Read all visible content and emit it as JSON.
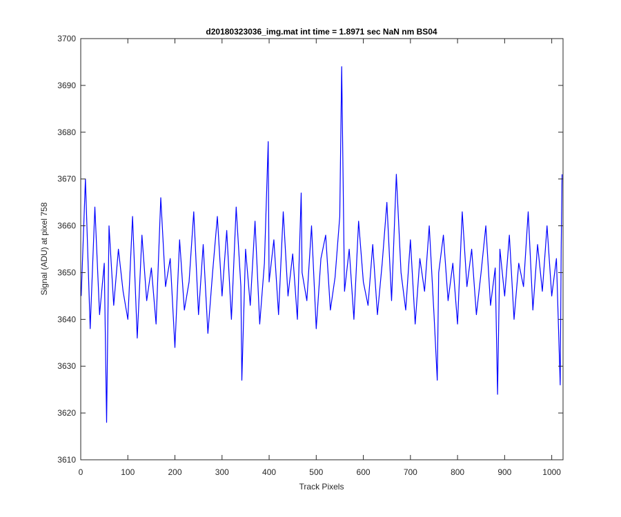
{
  "chart_data": {
    "type": "line",
    "title": "d20180323036_img.mat int time = 1.8971 sec  NaN nm BS04",
    "xlabel": "Track Pixels",
    "ylabel": "Signal (ADU) at pixel 758",
    "xlim": [
      0,
      1024
    ],
    "ylim": [
      3610,
      3700
    ],
    "xticks": [
      0,
      100,
      200,
      300,
      400,
      500,
      600,
      700,
      800,
      900,
      1000
    ],
    "yticks": [
      3610,
      3620,
      3630,
      3640,
      3650,
      3660,
      3670,
      3680,
      3690,
      3700
    ],
    "grid": false,
    "series": [
      {
        "color": "#0000ff",
        "x": [
          1,
          10,
          20,
          30,
          40,
          50,
          55,
          60,
          70,
          80,
          90,
          100,
          110,
          120,
          130,
          140,
          150,
          160,
          170,
          180,
          190,
          200,
          210,
          220,
          230,
          240,
          250,
          260,
          270,
          280,
          290,
          300,
          310,
          320,
          330,
          340,
          342,
          350,
          360,
          370,
          380,
          390,
          398,
          400,
          410,
          420,
          430,
          440,
          450,
          460,
          468,
          470,
          480,
          490,
          500,
          510,
          520,
          530,
          540,
          550,
          554,
          560,
          570,
          580,
          590,
          600,
          610,
          620,
          630,
          640,
          650,
          660,
          670,
          680,
          690,
          700,
          710,
          720,
          730,
          740,
          750,
          757,
          760,
          770,
          780,
          790,
          800,
          810,
          820,
          830,
          840,
          850,
          860,
          870,
          880,
          885,
          890,
          900,
          910,
          920,
          930,
          940,
          950,
          960,
          970,
          980,
          990,
          1000,
          1010,
          1018,
          1020,
          1022
        ],
        "y": [
          3645,
          3670,
          3638,
          3664,
          3641,
          3652,
          3618,
          3660,
          3643,
          3655,
          3646,
          3640,
          3662,
          3636,
          3658,
          3644,
          3651,
          3639,
          3666,
          3647,
          3653,
          3634,
          3657,
          3642,
          3648,
          3663,
          3641,
          3656,
          3637,
          3650,
          3662,
          3645,
          3659,
          3640,
          3664,
          3647,
          3627,
          3655,
          3643,
          3661,
          3639,
          3652,
          3678,
          3648,
          3657,
          3641,
          3663,
          3645,
          3654,
          3640,
          3667,
          3650,
          3644,
          3660,
          3638,
          3653,
          3658,
          3642,
          3649,
          3662,
          3694,
          3646,
          3655,
          3640,
          3661,
          3648,
          3643,
          3656,
          3641,
          3652,
          3665,
          3644,
          3671,
          3650,
          3642,
          3657,
          3639,
          3653,
          3646,
          3660,
          3641,
          3627,
          3650,
          3658,
          3644,
          3652,
          3639,
          3663,
          3647,
          3655,
          3641,
          3650,
          3660,
          3643,
          3651,
          3624,
          3655,
          3645,
          3658,
          3640,
          3652,
          3647,
          3663,
          3642,
          3656,
          3646,
          3660,
          3645,
          3653,
          3626,
          3655,
          3671
        ]
      }
    ]
  }
}
